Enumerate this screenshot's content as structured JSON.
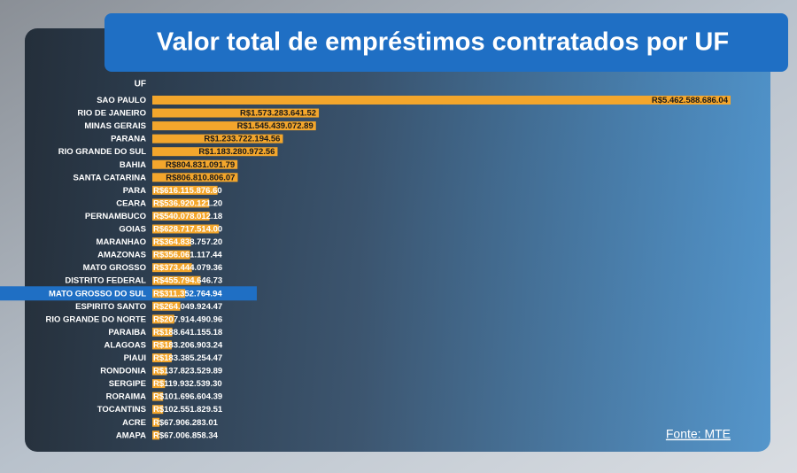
{
  "chart_data": {
    "type": "bar",
    "orientation": "horizontal",
    "title": "Valor total de empréstimos contratados por UF",
    "category_header": "UF",
    "source": "Fonte: MTE",
    "color": "#f3a62c",
    "highlight_index": 15,
    "categories": [
      "SAO PAULO",
      "RIO DE JANEIRO",
      "MINAS GERAIS",
      "PARANA",
      "RIO GRANDE DO SUL",
      "BAHIA",
      "SANTA CATARINA",
      "PARA",
      "CEARA",
      "PERNAMBUCO",
      "GOIAS",
      "MARANHAO",
      "AMAZONAS",
      "MATO GROSSO",
      "DISTRITO FEDERAL",
      "MATO GROSSO DO SUL",
      "ESPIRITO SANTO",
      "RIO GRANDE DO NORTE",
      "PARAIBA",
      "ALAGOAS",
      "PIAUI",
      "RONDONIA",
      "SERGIPE",
      "RORAIMA",
      "TOCANTINS",
      "ACRE",
      "AMAPA"
    ],
    "values": [
      5462588686.04,
      1573283641.52,
      1545439072.89,
      1233722194.56,
      1183280972.56,
      804831091.79,
      806810806.07,
      616115876.6,
      536920121.2,
      540078012.18,
      628717514.0,
      364838757.2,
      356061117.44,
      373444079.36,
      455794646.73,
      311352764.94,
      264049924.47,
      207914490.96,
      188641155.18,
      183206903.24,
      183385254.47,
      137823529.89,
      119932539.3,
      101696604.39,
      102551829.51,
      67906283.01,
      67006858.34
    ],
    "value_labels": [
      "R$5.462.588.686.04",
      "R$1.573.283.641.52",
      "R$1.545.439.072.89",
      "R$1.233.722.194.56",
      "R$1.183.280.972.56",
      "R$804.831.091.79",
      "R$806.810.806.07",
      "R$616.115.876.60",
      "R$536.920.121.20",
      "R$540.078.012.18",
      "R$628.717.514.00",
      "R$364.838.757.20",
      "R$356.061.117.44",
      "R$373.444.079.36",
      "R$455.794.646.73",
      "R$311.352.764.94",
      "R$264.049.924.47",
      "R$207.914.490.96",
      "R$188.641.155.18",
      "R$183.206.903.24",
      "R$183.385.254.47",
      "R$137.823.529.89",
      "R$119.932.539.30",
      "R$101.696.604.39",
      "R$102.551.829.51",
      "R$67.906.283.01",
      "R$67.006.858.34"
    ]
  }
}
